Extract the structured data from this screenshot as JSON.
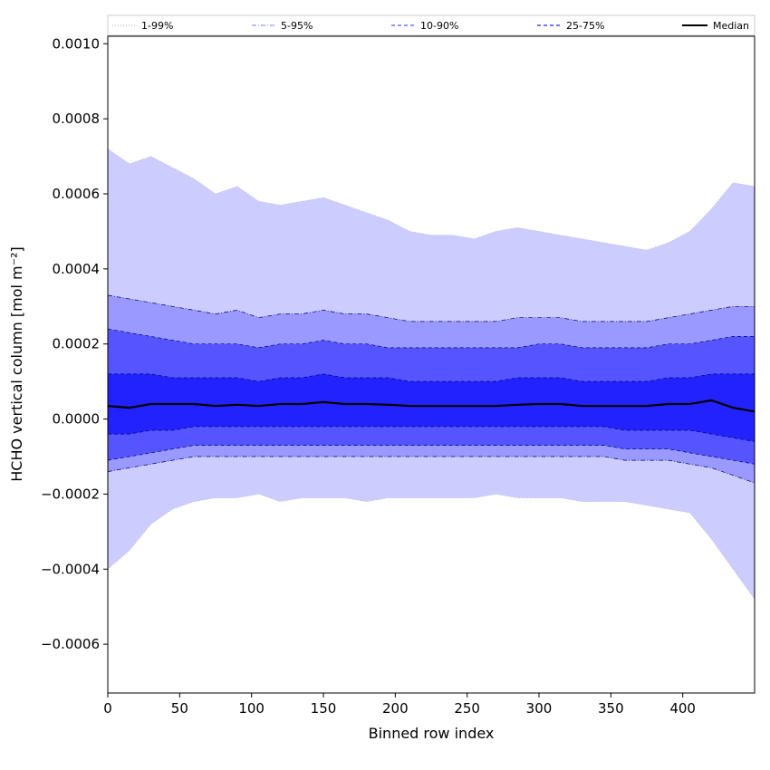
{
  "chart_data": {
    "type": "area",
    "title": "",
    "xlabel": "Binned row index",
    "ylabel": "HCHO vertical column [mol m⁻²]",
    "xlim": [
      0,
      450
    ],
    "ylim": [
      -0.00073,
      0.00102
    ],
    "xticks": [
      0,
      50,
      100,
      150,
      200,
      250,
      300,
      350,
      400
    ],
    "xtick_labels": [
      "0",
      "50",
      "100",
      "150",
      "200",
      "250",
      "300",
      "350",
      "400"
    ],
    "yticks": [
      -0.0006,
      -0.0004,
      -0.0002,
      0.0,
      0.0002,
      0.0004,
      0.0006,
      0.0008,
      0.001
    ],
    "ytick_labels": [
      "−0.0006",
      "−0.0004",
      "−0.0002",
      "0.0000",
      "0.0002",
      "0.0004",
      "0.0006",
      "0.0008",
      "0.0010"
    ],
    "legend_position": "top (above plot, single row)",
    "x": [
      0,
      15,
      30,
      45,
      60,
      75,
      90,
      105,
      120,
      135,
      150,
      165,
      180,
      195,
      210,
      225,
      240,
      255,
      270,
      285,
      300,
      315,
      330,
      345,
      360,
      375,
      390,
      405,
      420,
      435,
      450
    ],
    "series": [
      {
        "name": "1-99%",
        "style": "dotted",
        "color": "#ccccff",
        "upper": [
          0.00072,
          0.00068,
          0.0007,
          0.00067,
          0.00064,
          0.0006,
          0.00062,
          0.00058,
          0.00057,
          0.00058,
          0.00059,
          0.00057,
          0.00055,
          0.00053,
          0.0005,
          0.00049,
          0.00049,
          0.00048,
          0.0005,
          0.00051,
          0.0005,
          0.00049,
          0.00048,
          0.00047,
          0.00046,
          0.00045,
          0.00047,
          0.0005,
          0.00056,
          0.00063,
          0.00062
        ],
        "lower": [
          -0.0004,
          -0.00035,
          -0.00028,
          -0.00024,
          -0.00022,
          -0.00021,
          -0.00021,
          -0.0002,
          -0.00022,
          -0.00021,
          -0.00021,
          -0.00021,
          -0.00022,
          -0.00021,
          -0.00021,
          -0.00021,
          -0.00021,
          -0.00021,
          -0.0002,
          -0.00021,
          -0.00021,
          -0.00021,
          -0.00022,
          -0.00022,
          -0.00022,
          -0.00023,
          -0.00024,
          -0.00025,
          -0.00032,
          -0.0004,
          -0.00048
        ]
      },
      {
        "name": "5-95%",
        "style": "dashdot",
        "color": "#9999ff",
        "upper": [
          0.00033,
          0.00032,
          0.00031,
          0.0003,
          0.00029,
          0.00028,
          0.00029,
          0.00027,
          0.00028,
          0.00028,
          0.00029,
          0.00028,
          0.00028,
          0.00027,
          0.00026,
          0.00026,
          0.00026,
          0.00026,
          0.00026,
          0.00027,
          0.00027,
          0.00027,
          0.00026,
          0.00026,
          0.00026,
          0.00026,
          0.00027,
          0.00028,
          0.00029,
          0.0003,
          0.0003
        ],
        "lower": [
          -0.00014,
          -0.00013,
          -0.00012,
          -0.00011,
          -0.0001,
          -0.0001,
          -0.0001,
          -0.0001,
          -0.0001,
          -0.0001,
          -0.0001,
          -0.0001,
          -0.0001,
          -0.0001,
          -0.0001,
          -0.0001,
          -0.0001,
          -0.0001,
          -0.0001,
          -0.0001,
          -0.0001,
          -0.0001,
          -0.0001,
          -0.0001,
          -0.00011,
          -0.00011,
          -0.00011,
          -0.00012,
          -0.00013,
          -0.00015,
          -0.00017
        ]
      },
      {
        "name": "10-90%",
        "style": "dashed",
        "color": "#5555ff",
        "upper": [
          0.00024,
          0.00023,
          0.00022,
          0.00021,
          0.0002,
          0.0002,
          0.0002,
          0.00019,
          0.0002,
          0.0002,
          0.00021,
          0.0002,
          0.0002,
          0.00019,
          0.00019,
          0.00019,
          0.00019,
          0.00019,
          0.00019,
          0.00019,
          0.0002,
          0.0002,
          0.00019,
          0.00019,
          0.00019,
          0.00019,
          0.0002,
          0.0002,
          0.00021,
          0.00022,
          0.00022
        ],
        "lower": [
          -0.00011,
          -0.0001,
          -9e-05,
          -8e-05,
          -7e-05,
          -7e-05,
          -7e-05,
          -7e-05,
          -7e-05,
          -7e-05,
          -7e-05,
          -7e-05,
          -7e-05,
          -7e-05,
          -7e-05,
          -7e-05,
          -7e-05,
          -7e-05,
          -7e-05,
          -7e-05,
          -7e-05,
          -7e-05,
          -7e-05,
          -7e-05,
          -8e-05,
          -8e-05,
          -8e-05,
          -9e-05,
          -0.0001,
          -0.00011,
          -0.00012
        ]
      },
      {
        "name": "25-75%",
        "style": "dashed",
        "color": "#2222ff",
        "upper": [
          0.00012,
          0.00012,
          0.00012,
          0.00011,
          0.00011,
          0.00011,
          0.00011,
          0.0001,
          0.00011,
          0.00011,
          0.00012,
          0.00011,
          0.00011,
          0.00011,
          0.0001,
          0.0001,
          0.0001,
          0.0001,
          0.0001,
          0.00011,
          0.00011,
          0.00011,
          0.0001,
          0.0001,
          0.0001,
          0.0001,
          0.00011,
          0.00011,
          0.00012,
          0.00012,
          0.00012
        ],
        "lower": [
          -4e-05,
          -4e-05,
          -3e-05,
          -3e-05,
          -2e-05,
          -2e-05,
          -2e-05,
          -2e-05,
          -2e-05,
          -2e-05,
          -2e-05,
          -2e-05,
          -2e-05,
          -2e-05,
          -2e-05,
          -2e-05,
          -2e-05,
          -2e-05,
          -2e-05,
          -2e-05,
          -2e-05,
          -2e-05,
          -2e-05,
          -2e-05,
          -3e-05,
          -3e-05,
          -3e-05,
          -3e-05,
          -4e-05,
          -5e-05,
          -6e-05
        ]
      },
      {
        "name": "Median",
        "style": "solid",
        "color": "#000000",
        "values": [
          3.5e-05,
          3e-05,
          4e-05,
          4e-05,
          4e-05,
          3.5e-05,
          3.8e-05,
          3.5e-05,
          4e-05,
          4e-05,
          4.5e-05,
          4e-05,
          4e-05,
          3.8e-05,
          3.5e-05,
          3.5e-05,
          3.5e-05,
          3.5e-05,
          3.5e-05,
          3.8e-05,
          4e-05,
          4e-05,
          3.5e-05,
          3.5e-05,
          3.5e-05,
          3.5e-05,
          4e-05,
          4e-05,
          5e-05,
          3e-05,
          2e-05
        ]
      }
    ]
  }
}
